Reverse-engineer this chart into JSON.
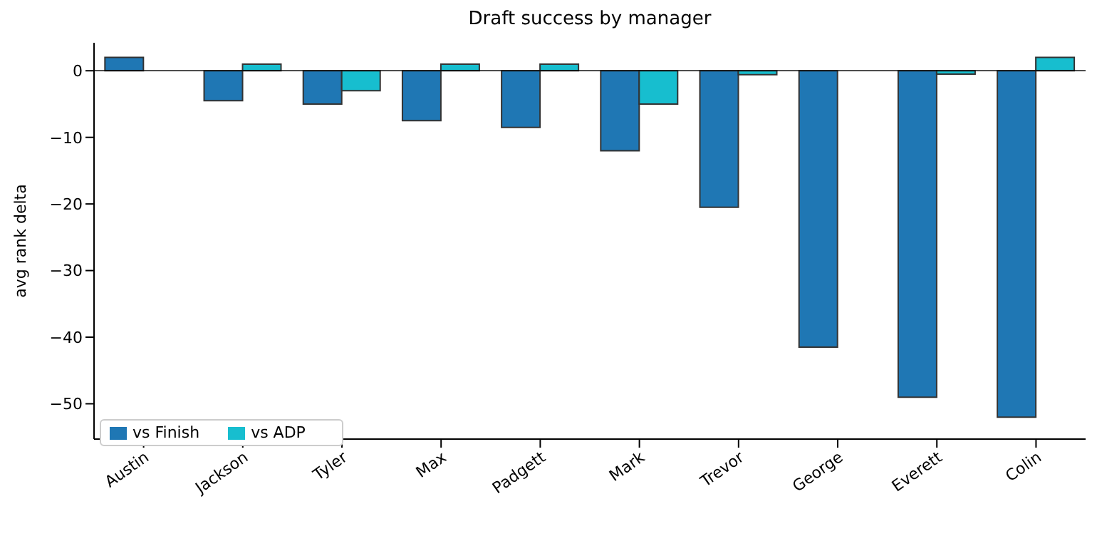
{
  "chart_data": {
    "type": "bar",
    "title": "Draft success by manager",
    "ylabel": "avg rank delta",
    "categories": [
      "Austin",
      "Jackson",
      "Tyler",
      "Max",
      "Padgett",
      "Mark",
      "Trevor",
      "George",
      "Everett",
      "Colin"
    ],
    "series": [
      {
        "name": "vs Finish",
        "color": "#1f77b4",
        "values": [
          2,
          -4.5,
          -5,
          -7.5,
          -8.5,
          -12,
          -20.5,
          -41.5,
          -49,
          -52
        ]
      },
      {
        "name": "vs ADP",
        "color": "#17becf",
        "values": [
          0,
          1,
          -3,
          1,
          1,
          -5,
          -0.6,
          0,
          -0.5,
          2
        ]
      }
    ],
    "ylim": [
      -55.3,
      4.2
    ],
    "yticks": [
      0,
      -10,
      -20,
      -30,
      -40,
      -50
    ],
    "ref_lines": [
      {
        "axis": "y",
        "value": 0,
        "color": "#000000"
      }
    ],
    "grid": false,
    "legend": "bottom left"
  }
}
